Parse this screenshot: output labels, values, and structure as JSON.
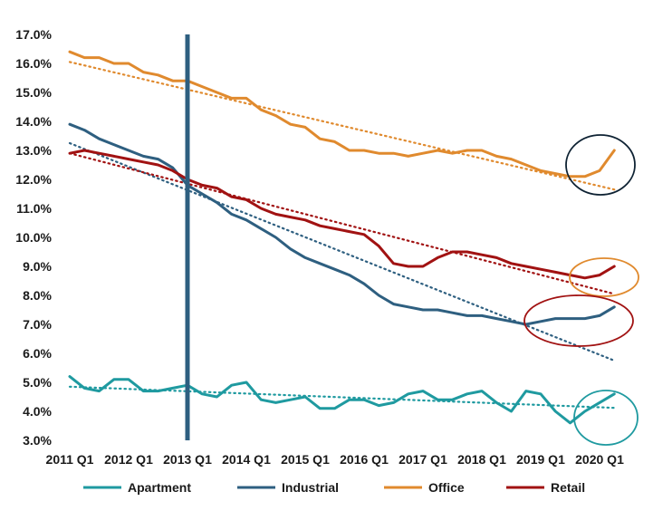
{
  "chart_data": {
    "type": "line",
    "title": "",
    "xlabel": "",
    "ylabel": "",
    "ylim": [
      3.0,
      17.0
    ],
    "y_ticks": [
      "3.0%",
      "4.0%",
      "5.0%",
      "6.0%",
      "7.0%",
      "8.0%",
      "9.0%",
      "10.0%",
      "11.0%",
      "12.0%",
      "13.0%",
      "14.0%",
      "15.0%",
      "16.0%",
      "17.0%"
    ],
    "x_ticks": [
      "2011 Q1",
      "2012 Q1",
      "2013 Q1",
      "2014 Q1",
      "2015 Q1",
      "2016 Q1",
      "2017 Q1",
      "2018 Q1",
      "2019 Q1",
      "2020 Q1"
    ],
    "grid": false,
    "legend_position": "bottom",
    "highlight_marker": {
      "x_quarter_index": 8,
      "label": "2013 Q1",
      "color": "#2E5F80"
    },
    "series": [
      {
        "name": "Apartment",
        "color": "#1F9AA0",
        "values": [
          5.2,
          4.8,
          4.7,
          5.1,
          5.1,
          4.7,
          4.7,
          4.8,
          4.9,
          4.6,
          4.5,
          4.9,
          5.0,
          4.4,
          4.3,
          4.4,
          4.5,
          4.1,
          4.1,
          4.4,
          4.4,
          4.2,
          4.3,
          4.6,
          4.7,
          4.4,
          4.4,
          4.6,
          4.7,
          4.3,
          4.0,
          4.7,
          4.6,
          4.0,
          3.6,
          4.0,
          4.3,
          4.6
        ],
        "trend": [
          4.85,
          4.12
        ]
      },
      {
        "name": "Industrial",
        "color": "#2E5F80",
        "values": [
          13.9,
          13.7,
          13.4,
          13.2,
          13.0,
          12.8,
          12.7,
          12.4,
          11.8,
          11.5,
          11.2,
          10.8,
          10.6,
          10.3,
          10.0,
          9.6,
          9.3,
          9.1,
          8.9,
          8.7,
          8.4,
          8.0,
          7.7,
          7.6,
          7.5,
          7.5,
          7.4,
          7.3,
          7.3,
          7.2,
          7.1,
          7.0,
          7.1,
          7.2,
          7.2,
          7.2,
          7.3,
          7.6
        ],
        "trend": [
          13.25,
          5.75
        ]
      },
      {
        "name": "Office",
        "color": "#E08A2E",
        "values": [
          16.4,
          16.2,
          16.2,
          16.0,
          16.0,
          15.7,
          15.6,
          15.4,
          15.4,
          15.2,
          15.0,
          14.8,
          14.8,
          14.4,
          14.2,
          13.9,
          13.8,
          13.4,
          13.3,
          13.0,
          13.0,
          12.9,
          12.9,
          12.8,
          12.9,
          13.0,
          12.9,
          13.0,
          13.0,
          12.8,
          12.7,
          12.5,
          12.3,
          12.2,
          12.1,
          12.1,
          12.3,
          13.0
        ],
        "trend": [
          16.05,
          11.65
        ]
      },
      {
        "name": "Retail",
        "color": "#A11212",
        "values": [
          12.9,
          13.0,
          12.9,
          12.8,
          12.7,
          12.6,
          12.5,
          12.3,
          12.0,
          11.8,
          11.7,
          11.4,
          11.3,
          11.0,
          10.8,
          10.7,
          10.6,
          10.4,
          10.3,
          10.2,
          10.1,
          9.7,
          9.1,
          9.0,
          9.0,
          9.3,
          9.5,
          9.5,
          9.4,
          9.3,
          9.1,
          9.0,
          8.9,
          8.8,
          8.7,
          8.6,
          8.7,
          9.0
        ],
        "trend": [
          12.9,
          8.05
        ]
      }
    ],
    "annotations": [
      {
        "type": "circle",
        "series": "Office",
        "color": "#0E2233"
      },
      {
        "type": "circle",
        "series": "Retail",
        "color": "#E08A2E"
      },
      {
        "type": "circle",
        "series": "Industrial",
        "color": "#A11212"
      },
      {
        "type": "circle",
        "series": "Apartment",
        "color": "#1F9AA0"
      }
    ]
  }
}
